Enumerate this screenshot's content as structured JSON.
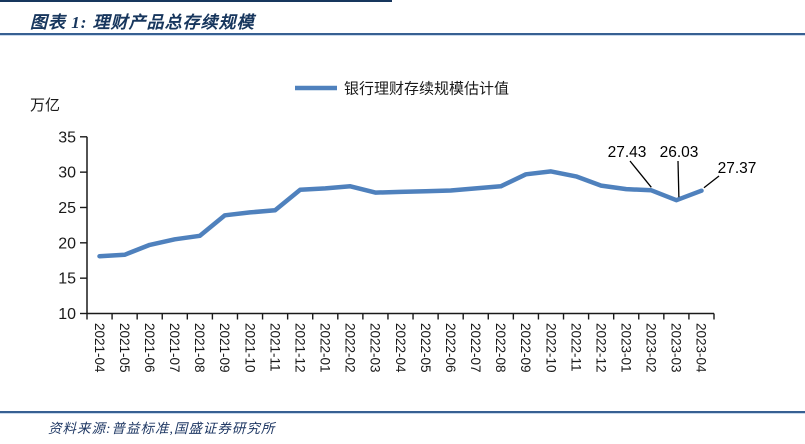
{
  "figure": {
    "title": "图表 1: 理财产品总存续规模",
    "source": "资料来源:普益标准,国盛证券研究所",
    "accent_color": "#17365d",
    "rule_color": "#376092"
  },
  "chart_data": {
    "type": "line",
    "title": "图表 1: 理财产品总存续规模",
    "unit_label": "万亿",
    "legend": [
      "银行理财存续规模估计值"
    ],
    "legend_position": "top-center",
    "line_color": "#4f81bd",
    "axis_color": "#1a1a1a",
    "grid": false,
    "ylim": [
      10,
      35
    ],
    "yticks": [
      10,
      15,
      20,
      25,
      30,
      35
    ],
    "categories": [
      "2021-04",
      "2021-05",
      "2021-06",
      "2021-07",
      "2021-08",
      "2021-09",
      "2021-10",
      "2021-11",
      "2021-12",
      "2022-01",
      "2022-02",
      "2022-03",
      "2022-04",
      "2022-05",
      "2022-06",
      "2022-07",
      "2022-08",
      "2022-09",
      "2022-10",
      "2022-11",
      "2022-12",
      "2023-01",
      "2023-02",
      "2023-03",
      "2023-04"
    ],
    "series": [
      {
        "name": "银行理财存续规模估计值",
        "values": [
          18.1,
          18.3,
          19.7,
          20.5,
          21.0,
          23.9,
          24.3,
          24.6,
          27.5,
          27.7,
          28.0,
          27.1,
          27.2,
          27.3,
          27.4,
          27.7,
          28.0,
          29.7,
          30.1,
          29.4,
          28.1,
          27.6,
          27.43,
          26.03,
          27.37
        ]
      }
    ],
    "annotations": [
      {
        "text": "27.43",
        "category": "2023-02",
        "value": 27.43
      },
      {
        "text": "26.03",
        "category": "2023-03",
        "value": 26.03
      },
      {
        "text": "27.37",
        "category": "2023-04",
        "value": 27.37
      }
    ]
  }
}
